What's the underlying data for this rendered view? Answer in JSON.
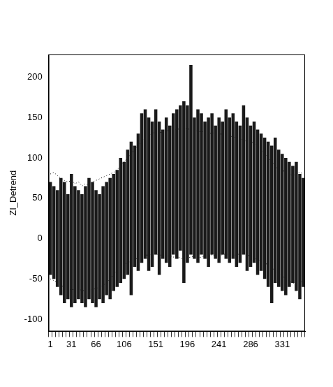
{
  "chart_data": {
    "type": "boxplot",
    "y_label": "ZI_Detrend",
    "categories": [
      "1",
      null,
      null,
      null,
      null,
      null,
      "31",
      null,
      null,
      null,
      null,
      null,
      null,
      "66",
      null,
      null,
      null,
      null,
      null,
      null,
      null,
      "106",
      null,
      null,
      null,
      null,
      null,
      null,
      null,
      null,
      "151",
      null,
      null,
      null,
      null,
      null,
      null,
      null,
      null,
      "196",
      null,
      null,
      null,
      null,
      null,
      null,
      null,
      null,
      "241",
      null,
      null,
      null,
      null,
      null,
      null,
      null,
      null,
      "286",
      null,
      null,
      null,
      null,
      null,
      null,
      null,
      null,
      "331",
      null,
      null,
      null,
      null,
      null,
      null
    ],
    "whisker_high": [
      70,
      65,
      60,
      75,
      70,
      55,
      80,
      65,
      60,
      55,
      65,
      75,
      70,
      60,
      55,
      65,
      70,
      75,
      80,
      85,
      100,
      95,
      110,
      120,
      115,
      130,
      155,
      160,
      150,
      145,
      160,
      145,
      135,
      150,
      140,
      155,
      160,
      165,
      170,
      165,
      215,
      150,
      160,
      155,
      145,
      150,
      155,
      140,
      150,
      145,
      160,
      150,
      155,
      145,
      140,
      165,
      150,
      140,
      145,
      135,
      130,
      125,
      120,
      115,
      125,
      110,
      105,
      100,
      95,
      90,
      95,
      80,
      75
    ],
    "whisker_low": [
      -45,
      -50,
      -60,
      -70,
      -80,
      -75,
      -85,
      -80,
      -75,
      -80,
      -85,
      -75,
      -80,
      -85,
      -75,
      -80,
      -70,
      -75,
      -65,
      -60,
      -55,
      -50,
      -45,
      -70,
      -35,
      -40,
      -30,
      -25,
      -40,
      -35,
      -20,
      -45,
      -25,
      -30,
      -35,
      -20,
      -25,
      -15,
      -55,
      -30,
      -20,
      -25,
      -30,
      -20,
      -25,
      -35,
      -20,
      -25,
      -30,
      -20,
      -25,
      -30,
      -25,
      -35,
      -30,
      -20,
      -40,
      -35,
      -30,
      -45,
      -40,
      -50,
      -60,
      -80,
      -55,
      -60,
      -65,
      -70,
      -60,
      -55,
      -65,
      -75,
      -60
    ],
    "color": "#1a1a1a",
    "envelope_upper": [
      80,
      82,
      78,
      75,
      72,
      70,
      72,
      68,
      70,
      65,
      68,
      66,
      70,
      72,
      74,
      76,
      78,
      80,
      82,
      85,
      90,
      95,
      100,
      105,
      110,
      115,
      120,
      125,
      128,
      130,
      132,
      130,
      133,
      135,
      132,
      134,
      136,
      135,
      137,
      136,
      135,
      134,
      133,
      132,
      133,
      131,
      130,
      132,
      130,
      129,
      128,
      127,
      126,
      125,
      124,
      122,
      120,
      118,
      120,
      115,
      110,
      105,
      100,
      95,
      90,
      85,
      85,
      82,
      80,
      78,
      80,
      82,
      80
    ],
    "envelope_lower": [
      -50,
      -52,
      -55,
      -58,
      -60,
      -62,
      -64,
      -62,
      -63,
      -64,
      -65,
      -64,
      -63,
      -62,
      -60,
      -58,
      -55,
      -50,
      -45,
      -40,
      -35,
      -32,
      -30,
      -28,
      -26,
      -24,
      -22,
      -21,
      -20,
      -20,
      -19,
      -21,
      -20,
      -22,
      -21,
      -23,
      -22,
      -24,
      -25,
      -24,
      -23,
      -22,
      -24,
      -23,
      -22,
      -21,
      -20,
      -22,
      -21,
      -20,
      -19,
      -20,
      -21,
      -20,
      -19,
      -18,
      -20,
      -22,
      -24,
      -26,
      -28,
      -30,
      -33,
      -36,
      -40,
      -43,
      -46,
      -50,
      -53,
      -55,
      -55,
      -55,
      -52
    ],
    "envelope_color": "#000000",
    "line_style": "dotted",
    "ylim": [
      -115,
      228
    ],
    "yticks": [
      -100,
      -50,
      0,
      50,
      100,
      150,
      200
    ],
    "grid": false
  }
}
